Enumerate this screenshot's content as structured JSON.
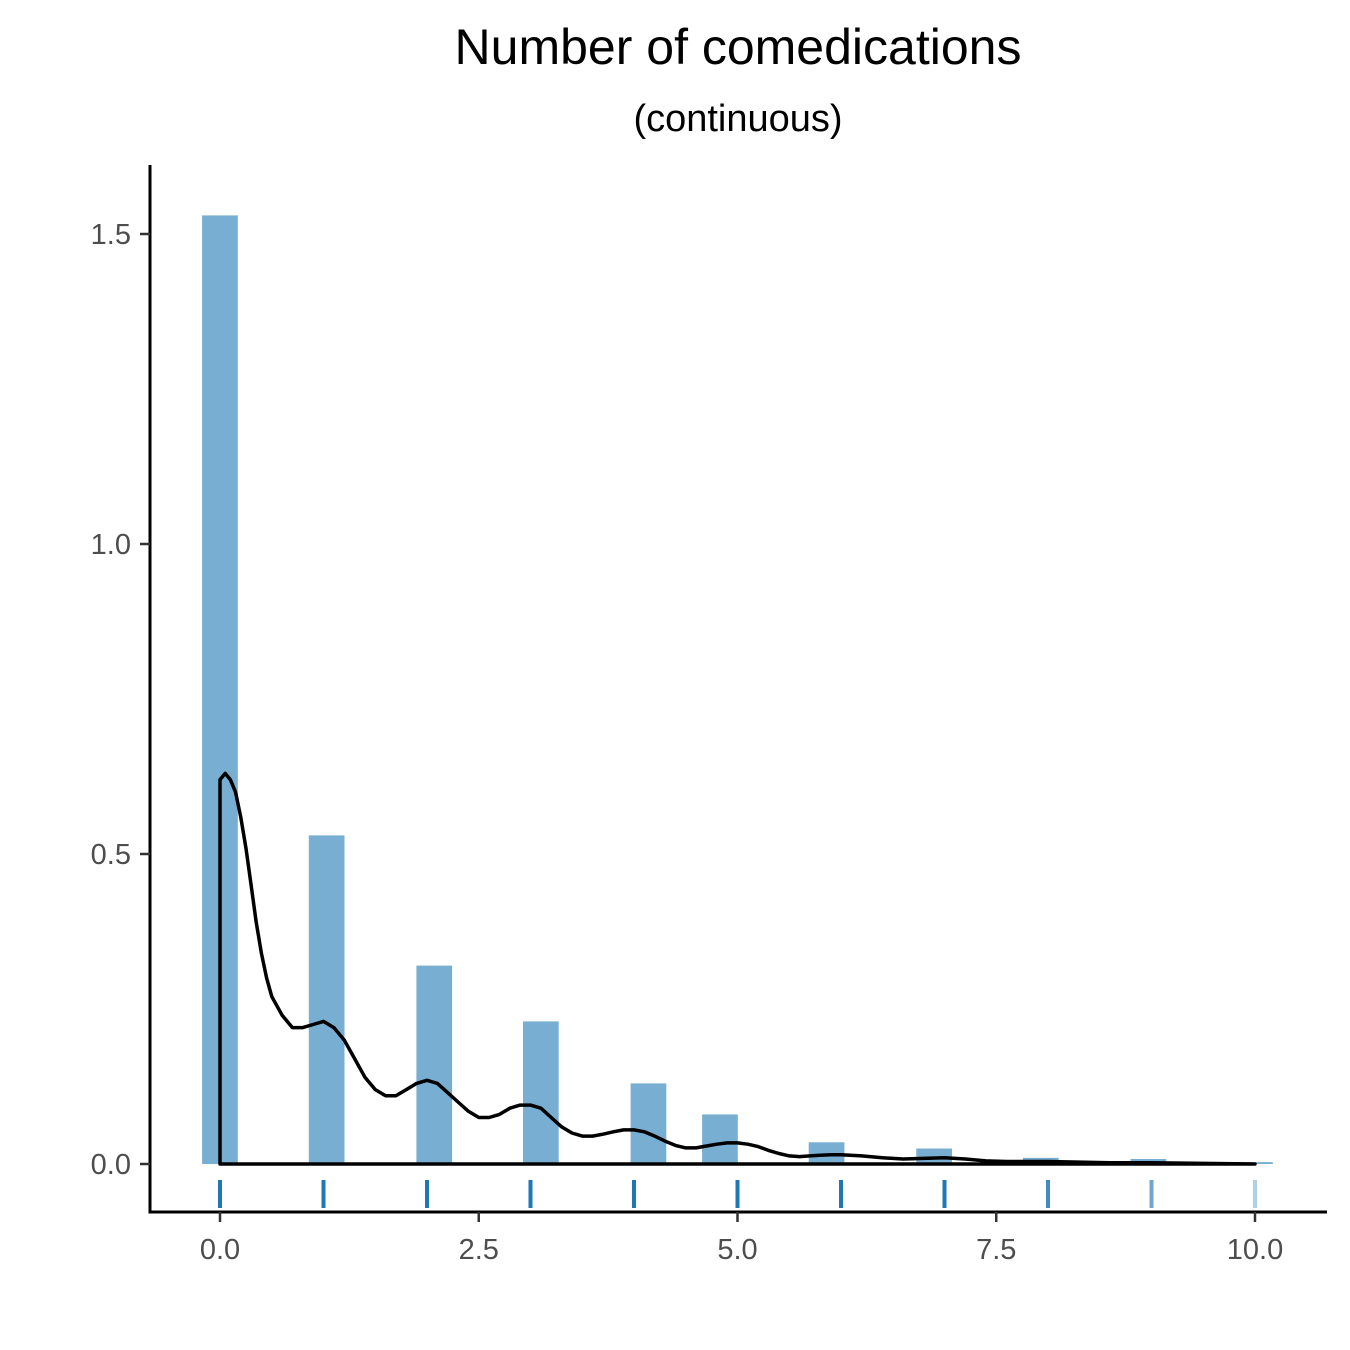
{
  "chart_data": {
    "type": "bar",
    "title": "Number of comedications",
    "subtitle": "(continuous)",
    "xlabel": "",
    "ylabel": "",
    "xlim": [
      -0.3,
      10.4
    ],
    "ylim": [
      -0.07,
      1.6
    ],
    "x_ticks": [
      "0.0",
      "2.5",
      "5.0",
      "7.5",
      "10.0"
    ],
    "y_ticks": [
      "0.0",
      "0.5",
      "1.0",
      "1.5"
    ],
    "grid": false,
    "histogram": {
      "bins": [
        {
          "x": 0.0,
          "density": 1.53
        },
        {
          "x": 1.03,
          "density": 0.53
        },
        {
          "x": 2.07,
          "density": 0.32
        },
        {
          "x": 3.1,
          "density": 0.23
        },
        {
          "x": 4.14,
          "density": 0.13
        },
        {
          "x": 4.83,
          "density": 0.08
        },
        {
          "x": 5.86,
          "density": 0.035
        },
        {
          "x": 6.9,
          "density": 0.025
        },
        {
          "x": 7.93,
          "density": 0.01
        },
        {
          "x": 8.97,
          "density": 0.008
        },
        {
          "x": 10.0,
          "density": 0.003
        }
      ],
      "bin_width": 0.345,
      "color": "#78aed2"
    },
    "density": {
      "color": "#000000",
      "points": [
        [
          0.0,
          0.62
        ],
        [
          0.05,
          0.63
        ],
        [
          0.1,
          0.62
        ],
        [
          0.15,
          0.6
        ],
        [
          0.2,
          0.56
        ],
        [
          0.25,
          0.51
        ],
        [
          0.3,
          0.45
        ],
        [
          0.35,
          0.39
        ],
        [
          0.4,
          0.34
        ],
        [
          0.45,
          0.3
        ],
        [
          0.5,
          0.27
        ],
        [
          0.6,
          0.24
        ],
        [
          0.7,
          0.22
        ],
        [
          0.8,
          0.22
        ],
        [
          0.9,
          0.225
        ],
        [
          1.0,
          0.23
        ],
        [
          1.1,
          0.22
        ],
        [
          1.2,
          0.2
        ],
        [
          1.3,
          0.17
        ],
        [
          1.4,
          0.14
        ],
        [
          1.5,
          0.12
        ],
        [
          1.6,
          0.11
        ],
        [
          1.7,
          0.11
        ],
        [
          1.8,
          0.12
        ],
        [
          1.9,
          0.13
        ],
        [
          2.0,
          0.135
        ],
        [
          2.1,
          0.13
        ],
        [
          2.2,
          0.115
        ],
        [
          2.3,
          0.1
        ],
        [
          2.4,
          0.085
        ],
        [
          2.5,
          0.075
        ],
        [
          2.6,
          0.075
        ],
        [
          2.7,
          0.08
        ],
        [
          2.8,
          0.09
        ],
        [
          2.9,
          0.095
        ],
        [
          3.0,
          0.095
        ],
        [
          3.1,
          0.09
        ],
        [
          3.2,
          0.075
        ],
        [
          3.3,
          0.06
        ],
        [
          3.4,
          0.05
        ],
        [
          3.5,
          0.045
        ],
        [
          3.6,
          0.045
        ],
        [
          3.7,
          0.048
        ],
        [
          3.8,
          0.052
        ],
        [
          3.9,
          0.055
        ],
        [
          4.0,
          0.055
        ],
        [
          4.1,
          0.052
        ],
        [
          4.2,
          0.045
        ],
        [
          4.3,
          0.037
        ],
        [
          4.4,
          0.03
        ],
        [
          4.5,
          0.026
        ],
        [
          4.6,
          0.026
        ],
        [
          4.7,
          0.029
        ],
        [
          4.8,
          0.032
        ],
        [
          4.9,
          0.034
        ],
        [
          5.0,
          0.034
        ],
        [
          5.1,
          0.032
        ],
        [
          5.2,
          0.028
        ],
        [
          5.3,
          0.022
        ],
        [
          5.4,
          0.017
        ],
        [
          5.5,
          0.013
        ],
        [
          5.6,
          0.012
        ],
        [
          5.7,
          0.013
        ],
        [
          5.8,
          0.014
        ],
        [
          5.9,
          0.015
        ],
        [
          6.0,
          0.015
        ],
        [
          6.2,
          0.013
        ],
        [
          6.4,
          0.01
        ],
        [
          6.6,
          0.008
        ],
        [
          6.8,
          0.009
        ],
        [
          7.0,
          0.01
        ],
        [
          7.2,
          0.008
        ],
        [
          7.4,
          0.005
        ],
        [
          7.6,
          0.004
        ],
        [
          7.8,
          0.004
        ],
        [
          8.0,
          0.004
        ],
        [
          8.3,
          0.003
        ],
        [
          8.6,
          0.002
        ],
        [
          9.0,
          0.002
        ],
        [
          9.5,
          0.001
        ],
        [
          10.0,
          0.0
        ]
      ]
    },
    "rug": {
      "values": [
        0,
        1,
        2,
        3,
        4,
        5,
        6,
        7,
        8,
        9,
        10
      ],
      "opacities": [
        1,
        1,
        1,
        1,
        1,
        1,
        1,
        1,
        0.85,
        0.65,
        0.35
      ],
      "color": "#1f77b4"
    }
  }
}
